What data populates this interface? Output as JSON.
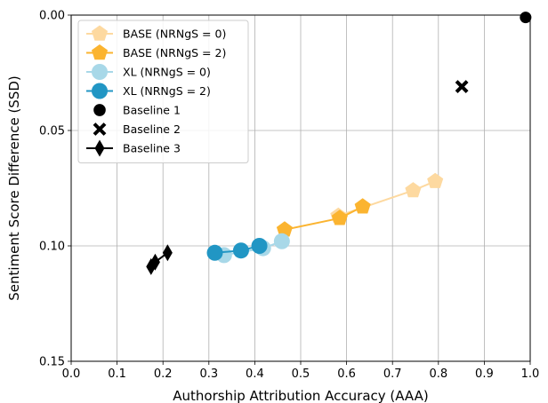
{
  "chart_data": {
    "type": "scatter",
    "title": "",
    "xlabel": "Authorship Attribution Accuracy (AAA)",
    "ylabel": "Sentiment Score Difference (SSD)",
    "xlim": [
      0.0,
      1.0
    ],
    "ylim": [
      0.0,
      0.15
    ],
    "y_inverted": true,
    "grid": true,
    "legend_position": "top-left",
    "x_ticks": [
      "0.0",
      "0.1",
      "0.2",
      "0.3",
      "0.4",
      "0.5",
      "0.6",
      "0.7",
      "0.8",
      "0.9",
      "1.0"
    ],
    "y_ticks": [
      "0.00",
      "0.05",
      "0.10",
      "0.15"
    ],
    "series": [
      {
        "name": "BASE (NRNgS = 0)",
        "marker": "pentagon",
        "color": "#fdd9a0",
        "line": true,
        "points": [
          [
            0.582,
            0.087
          ],
          [
            0.745,
            0.076
          ],
          [
            0.793,
            0.072
          ]
        ]
      },
      {
        "name": "BASE (NRNgS = 2)",
        "marker": "pentagon",
        "color": "#fbb430",
        "line": true,
        "points": [
          [
            0.465,
            0.093
          ],
          [
            0.585,
            0.088
          ],
          [
            0.635,
            0.083
          ]
        ]
      },
      {
        "name": "XL (NRNgS = 0)",
        "marker": "circle",
        "color": "#a8d8e8",
        "line": true,
        "points": [
          [
            0.333,
            0.104
          ],
          [
            0.418,
            0.101
          ],
          [
            0.459,
            0.098
          ]
        ]
      },
      {
        "name": "XL (NRNgS = 2)",
        "marker": "circle",
        "color": "#2196c4",
        "line": true,
        "points": [
          [
            0.313,
            0.103
          ],
          [
            0.37,
            0.102
          ],
          [
            0.41,
            0.1
          ]
        ]
      },
      {
        "name": "Baseline 1",
        "marker": "filled-circle",
        "color": "#000000",
        "line": false,
        "points": [
          [
            0.99,
            0.001
          ]
        ]
      },
      {
        "name": "Baseline 2",
        "marker": "x",
        "color": "#000000",
        "line": false,
        "points": [
          [
            0.851,
            0.031
          ]
        ]
      },
      {
        "name": "Baseline 3",
        "marker": "diamond",
        "color": "#000000",
        "line": true,
        "points": [
          [
            0.174,
            0.109
          ],
          [
            0.183,
            0.107
          ],
          [
            0.21,
            0.103
          ]
        ]
      }
    ]
  }
}
